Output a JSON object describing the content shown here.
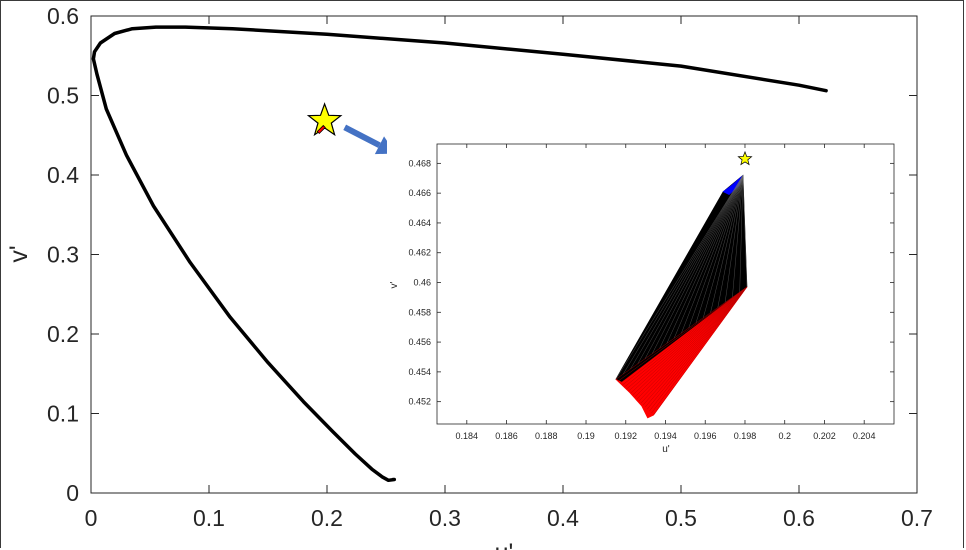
{
  "chart_data": [
    {
      "type": "line",
      "title": "",
      "xlabel": "u'",
      "ylabel": "v'",
      "xlim": [
        0,
        0.7
      ],
      "ylim": [
        0,
        0.6
      ],
      "xticks": [
        "0",
        "0.1",
        "0.2",
        "0.3",
        "0.4",
        "0.5",
        "0.6",
        "0.7"
      ],
      "yticks": [
        "0",
        "0.1",
        "0.2",
        "0.3",
        "0.4",
        "0.5",
        "0.6"
      ],
      "grid": false,
      "series": [
        {
          "color": "#000000",
          "x": [
            0.256,
            0.257,
            0.252,
            0.247,
            0.238,
            0.224,
            0.205,
            0.18,
            0.15,
            0.118,
            0.084,
            0.053,
            0.03,
            0.013,
            0.005,
            0.002,
            0.003,
            0.008,
            0.02,
            0.035,
            0.055,
            0.08,
            0.12,
            0.2,
            0.3,
            0.4,
            0.5,
            0.6,
            0.623
          ],
          "y": [
            0.017,
            0.017,
            0.016,
            0.02,
            0.03,
            0.049,
            0.077,
            0.115,
            0.164,
            0.221,
            0.29,
            0.361,
            0.425,
            0.483,
            0.527,
            0.546,
            0.555,
            0.566,
            0.578,
            0.584,
            0.586,
            0.586,
            0.584,
            0.577,
            0.566,
            0.552,
            0.537,
            0.513,
            0.506
          ]
        }
      ],
      "markers": [
        {
          "shape": "star",
          "x": 0.198,
          "y": 0.468,
          "color": "#ffff00"
        },
        {
          "shape": "patch",
          "x": 0.196,
          "y": 0.456,
          "color": "#ff0000"
        }
      ],
      "annotations": [
        {
          "type": "arrow",
          "from": [
            0.215,
            0.46
          ],
          "to": [
            0.258,
            0.427
          ],
          "color": "#4472c4"
        }
      ]
    },
    {
      "type": "area",
      "title": "",
      "xlabel": "u'",
      "ylabel": "v'",
      "xlim": [
        0.1825,
        0.2055
      ],
      "ylim": [
        0.4505,
        0.4693
      ],
      "xticks": [
        "0.184",
        "0.186",
        "0.188",
        "0.19",
        "0.192",
        "0.194",
        "0.196",
        "0.198",
        "0.2",
        "0.202",
        "0.204"
      ],
      "yticks": [
        "0.452",
        "0.454",
        "0.456",
        "0.458",
        "0.46",
        "0.462",
        "0.464",
        "0.466",
        "0.468"
      ],
      "grid": false,
      "series": [
        {
          "color": "#000000",
          "x": [
            0.1915,
            0.1969,
            0.1979,
            0.1981,
            0.1918
          ],
          "y": [
            0.4535,
            0.4661,
            0.4672,
            0.4597,
            0.4533
          ]
        },
        {
          "color": "#0000ff",
          "x": [
            0.1969,
            0.1973,
            0.1979,
            0.1977,
            0.1972,
            0.1969
          ],
          "y": [
            0.4661,
            0.4665,
            0.4672,
            0.4665,
            0.4659,
            0.4661
          ]
        },
        {
          "color": "#ff0000",
          "x": [
            0.1915,
            0.1918,
            0.1981,
            0.1934,
            0.1931,
            0.1928,
            0.1922,
            0.1915
          ],
          "y": [
            0.4535,
            0.4533,
            0.4597,
            0.4511,
            0.4509,
            0.4517,
            0.4526,
            0.4535
          ]
        }
      ],
      "markers": [
        {
          "shape": "star",
          "x": 0.198,
          "y": 0.4683,
          "color": "#ffff00"
        }
      ]
    }
  ]
}
